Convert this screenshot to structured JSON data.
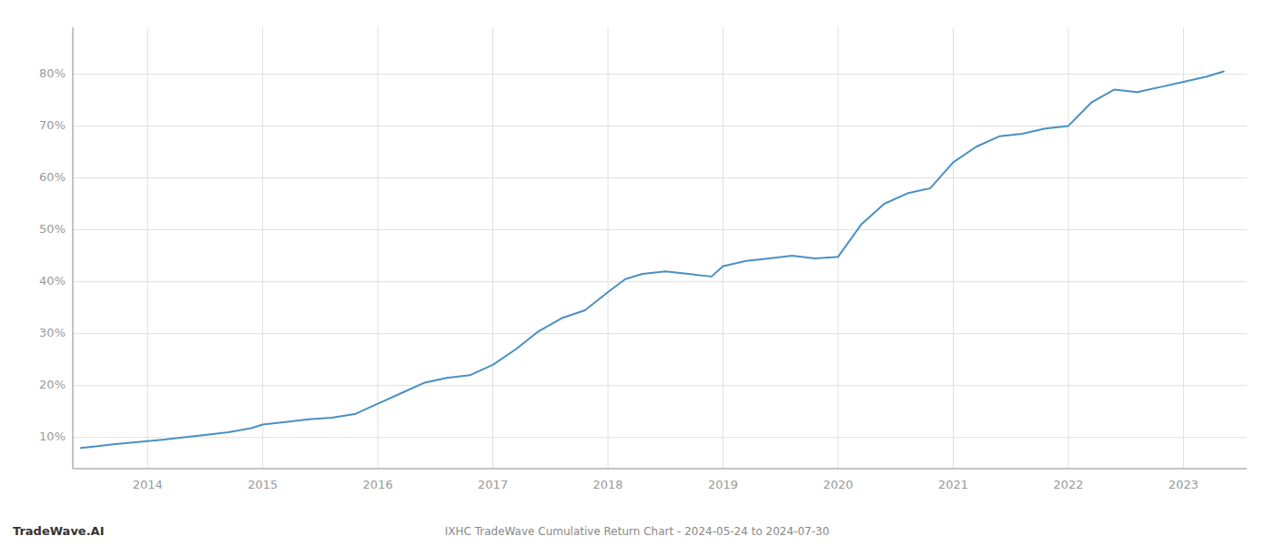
{
  "chart_data": {
    "type": "line",
    "title": "IXHC TradeWave Cumulative Return Chart - 2024-05-24 to 2024-07-30",
    "annotations": [
      "TradeWave.AI"
    ],
    "color": "#4a90c4",
    "grid": true,
    "x": [
      2013.42,
      2013.55,
      2013.7,
      2013.85,
      2014.0,
      2014.15,
      2014.3,
      2014.5,
      2014.7,
      2014.9,
      2015.0,
      2015.2,
      2015.4,
      2015.6,
      2015.8,
      2016.0,
      2016.2,
      2016.4,
      2016.6,
      2016.8,
      2017.0,
      2017.2,
      2017.4,
      2017.6,
      2017.8,
      2018.0,
      2018.15,
      2018.3,
      2018.5,
      2018.7,
      2018.9,
      2019.0,
      2019.2,
      2019.4,
      2019.6,
      2019.8,
      2020.0,
      2020.2,
      2020.4,
      2020.6,
      2020.8,
      2021.0,
      2021.2,
      2021.4,
      2021.6,
      2021.8,
      2022.0,
      2022.2,
      2022.4,
      2022.6,
      2022.8,
      2023.0,
      2023.2,
      2023.35
    ],
    "values": [
      8.0,
      8.3,
      8.7,
      9.0,
      9.3,
      9.6,
      10.0,
      10.5,
      11.0,
      11.8,
      12.5,
      13.0,
      13.5,
      13.8,
      14.5,
      16.5,
      18.5,
      20.5,
      21.5,
      22.0,
      24.0,
      27.0,
      30.5,
      33.0,
      34.5,
      38.0,
      40.5,
      41.5,
      42.0,
      41.5,
      41.0,
      43.0,
      44.0,
      44.5,
      45.0,
      44.5,
      44.8,
      51.0,
      55.0,
      57.0,
      58.0,
      63.0,
      66.0,
      68.0,
      68.5,
      69.5,
      70.0,
      74.5,
      77.0,
      76.5,
      77.5,
      78.5,
      79.5,
      80.5
    ],
    "xlim": [
      2013.35,
      2023.55
    ],
    "xticks": [
      2014,
      2015,
      2016,
      2017,
      2018,
      2019,
      2020,
      2021,
      2022,
      2023
    ],
    "ylim": [
      4,
      89
    ],
    "yticks": [
      {
        "value": 10,
        "label": "10%"
      },
      {
        "value": 20,
        "label": "20%"
      },
      {
        "value": 30,
        "label": "30%"
      },
      {
        "value": 40,
        "label": "40%"
      },
      {
        "value": 50,
        "label": "50%"
      },
      {
        "value": 60,
        "label": "60%"
      },
      {
        "value": 70,
        "label": "70%"
      },
      {
        "value": 80,
        "label": "80%"
      }
    ]
  }
}
